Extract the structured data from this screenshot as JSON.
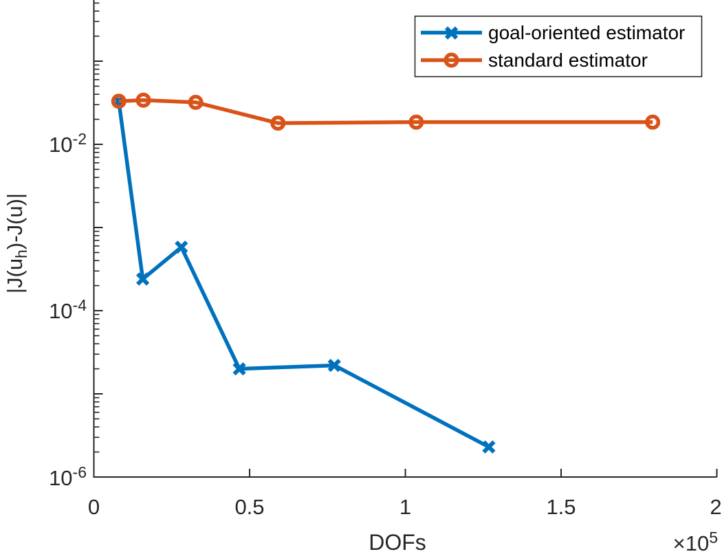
{
  "figure": {
    "background": "#ffffff",
    "axis_color": "#262626",
    "tick_label_color": "#262626",
    "legend_text_color": "#000000"
  },
  "axes": {
    "xlabel": "DOFs",
    "x_offset": {
      "base": "×10",
      "exp": "5"
    },
    "x_ticks": [
      "0",
      "0.5",
      "1",
      "1.5",
      "2"
    ],
    "y_ticks": [
      {
        "base": "10",
        "exp": "-2"
      },
      {
        "base": "10",
        "exp": "-4"
      },
      {
        "base": "10",
        "exp": "-6"
      }
    ],
    "ylabel": {
      "pre": "|J(u",
      "sub": "h",
      "post": ")-J(u)|"
    }
  },
  "legend": {
    "items": [
      {
        "label": "goal-oriented estimator",
        "color": "#0072BD",
        "marker": "x"
      },
      {
        "label": "standard estimator",
        "color": "#D95319",
        "marker": "o"
      }
    ]
  },
  "chart_data": {
    "type": "line",
    "title": "",
    "xlabel": "DOFs",
    "ylabel": "|J(u_h)-J(u)|",
    "x_scale": "linear",
    "y_scale": "log",
    "xlim": [
      0,
      200000
    ],
    "ylim_displayed": [
      1e-06,
      0.06
    ],
    "x_tick_values": [
      0,
      50000,
      100000,
      150000,
      200000
    ],
    "x_tick_multiplier": 100000,
    "y_major_tick_decades": [
      -1,
      -2,
      -3,
      -4,
      -5,
      -6
    ],
    "y_labeled_decades": [
      -2,
      -4,
      -6
    ],
    "grid": false,
    "legend_position": "top-right",
    "series": [
      {
        "name": "goal-oriented estimator",
        "color": "#0072BD",
        "marker": "x",
        "points": [
          {
            "x": 8000,
            "y": 0.033
          },
          {
            "x": 15700,
            "y": 0.00024
          },
          {
            "x": 28100,
            "y": 0.00058
          },
          {
            "x": 46700,
            "y": 2e-05
          },
          {
            "x": 77200,
            "y": 2.2e-05
          },
          {
            "x": 126800,
            "y": 2.3e-06
          }
        ]
      },
      {
        "name": "standard estimator",
        "color": "#D95319",
        "marker": "o",
        "points": [
          {
            "x": 8000,
            "y": 0.033
          },
          {
            "x": 15900,
            "y": 0.034
          },
          {
            "x": 32700,
            "y": 0.032
          },
          {
            "x": 59100,
            "y": 0.018
          },
          {
            "x": 103500,
            "y": 0.0185
          },
          {
            "x": 179400,
            "y": 0.0185
          }
        ]
      }
    ]
  }
}
